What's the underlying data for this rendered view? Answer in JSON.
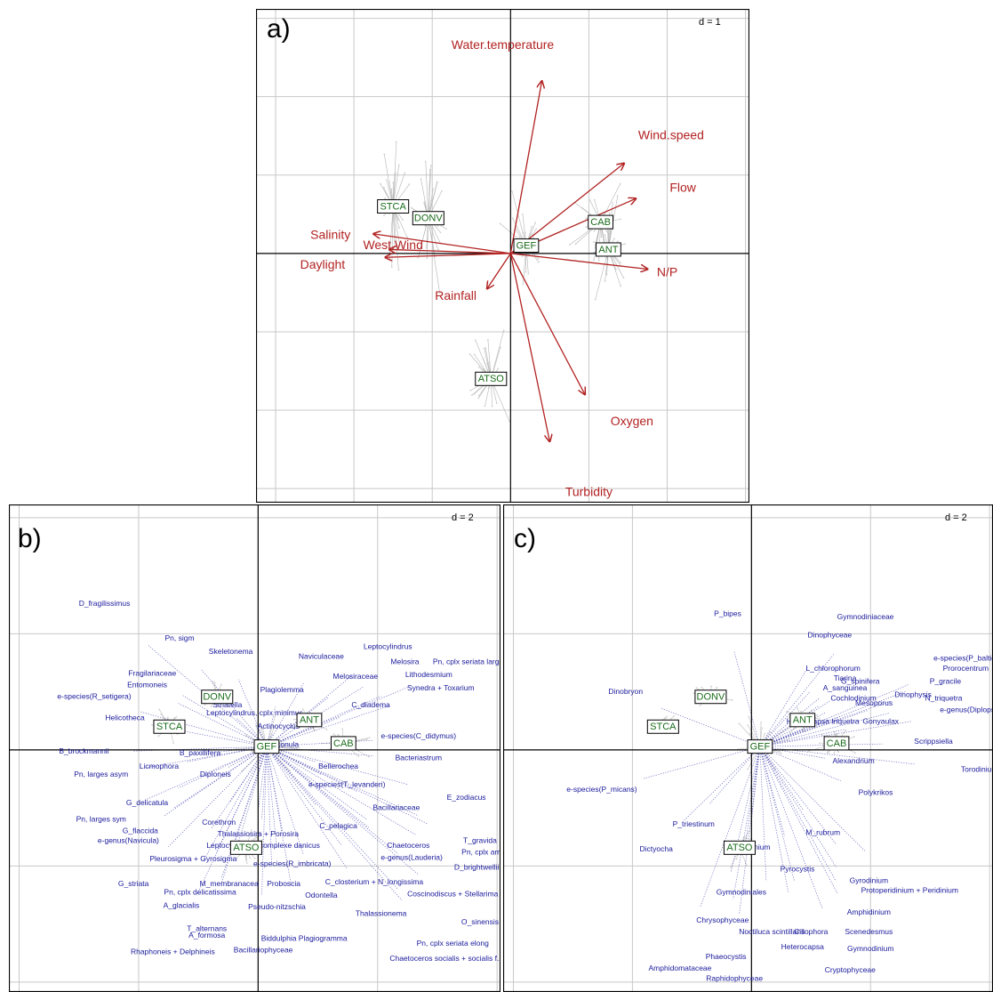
{
  "chart_data": [
    {
      "type": "scatter",
      "panel_label": "a)",
      "scale_label": "d = 1",
      "grid": true,
      "xlim": [
        -3.25,
        3.05
      ],
      "ylim": [
        -3.18,
        3.12
      ],
      "colors": {
        "variable": "#b22222",
        "group_fill": "#ffffff",
        "group_border": "#000000",
        "group_text": "#1a6b1a",
        "spider": "#b5b5b5",
        "grid": "#c8c8c8"
      },
      "groups": [
        {
          "name": "GEF",
          "x": 0.2,
          "y": 0.1
        },
        {
          "name": "STCA",
          "x": -1.5,
          "y": 0.6
        },
        {
          "name": "DONV",
          "x": -1.05,
          "y": 0.45
        },
        {
          "name": "CAB",
          "x": 1.15,
          "y": 0.4
        },
        {
          "name": "ANT",
          "x": 1.25,
          "y": 0.05
        },
        {
          "name": "ATSO",
          "x": -0.25,
          "y": -1.6
        }
      ],
      "vectors": [
        {
          "name": "Water.temperature",
          "x": 0.4,
          "y": 2.2,
          "lx": -0.1,
          "ly": 2.65
        },
        {
          "name": "Wind.speed",
          "x": 1.45,
          "y": 1.15,
          "lx": 2.05,
          "ly": 1.5
        },
        {
          "name": "Flow",
          "x": 1.6,
          "y": 0.7,
          "lx": 2.2,
          "ly": 0.83
        },
        {
          "name": "Salinity",
          "x": -1.75,
          "y": 0.25,
          "lx": -2.3,
          "ly": 0.23
        },
        {
          "name": "West.Wind",
          "x": -1.55,
          "y": 0.05,
          "lx": -1.5,
          "ly": 0.1
        },
        {
          "name": "Daylight",
          "x": -1.6,
          "y": -0.05,
          "lx": -2.4,
          "ly": -0.15
        },
        {
          "name": "N/P",
          "x": 1.75,
          "y": -0.2,
          "lx": 2.0,
          "ly": -0.25
        },
        {
          "name": "Rainfall",
          "x": -0.3,
          "y": -0.45,
          "lx": -0.7,
          "ly": -0.55
        },
        {
          "name": "Oxygen",
          "x": 0.95,
          "y": -1.8,
          "lx": 1.55,
          "ly": -2.15
        },
        {
          "name": "Turbidity",
          "x": 0.5,
          "y": -2.4,
          "lx": 1.0,
          "ly": -3.05
        }
      ]
    },
    {
      "type": "scatter",
      "panel_label": "b)",
      "scale_label": "d = 2",
      "grid": true,
      "xlim": [
        -7.3,
        7.1
      ],
      "ylim": [
        -7.3,
        7.4
      ],
      "colors": {
        "species": "#1a1a9c",
        "group_fill": "#ffffff",
        "group_border": "#000000",
        "group_text": "#1a6b1a",
        "spider": "#c0c0c0",
        "grid": "#c8c8c8"
      },
      "groups": [
        {
          "name": "GEF",
          "x": 0.25,
          "y": 0.1
        },
        {
          "name": "STCA",
          "x": -2.6,
          "y": 0.7
        },
        {
          "name": "DONV",
          "x": -1.2,
          "y": 1.6
        },
        {
          "name": "ANT",
          "x": 1.5,
          "y": 0.9
        },
        {
          "name": "CAB",
          "x": 2.5,
          "y": 0.2
        },
        {
          "name": "ATSO",
          "x": -0.35,
          "y": -2.95
        }
      ],
      "species": [
        {
          "name": "D_fragilissimus",
          "x": -4.5,
          "y": 4.4
        },
        {
          "name": "Pn, sigm",
          "x": -2.3,
          "y": 3.35
        },
        {
          "name": "Skeletonema",
          "x": -0.8,
          "y": 2.95
        },
        {
          "name": "Fragilariaceae",
          "x": -3.1,
          "y": 2.3
        },
        {
          "name": "Entomoneis",
          "x": -3.25,
          "y": 1.95
        },
        {
          "name": "e-species(R_setigera)",
          "x": -4.8,
          "y": 1.6
        },
        {
          "name": "Helicotheca",
          "x": -3.9,
          "y": 0.95
        },
        {
          "name": "B_brockmannii",
          "x": -5.1,
          "y": -0.05
        },
        {
          "name": "B_paxillifera",
          "x": -1.7,
          "y": -0.1
        },
        {
          "name": "Licmophora",
          "x": -2.9,
          "y": -0.5
        },
        {
          "name": "Pn, larges asym",
          "x": -4.6,
          "y": -0.75
        },
        {
          "name": "Diploneis",
          "x": -1.25,
          "y": -0.75
        },
        {
          "name": "G_delicatula",
          "x": -3.25,
          "y": -1.6
        },
        {
          "name": "Pn, larges sym",
          "x": -4.6,
          "y": -2.1
        },
        {
          "name": "Corethron",
          "x": -1.15,
          "y": -2.2
        },
        {
          "name": "G_flaccida",
          "x": -3.45,
          "y": -2.45
        },
        {
          "name": "e-genus(Navicula)",
          "x": -3.8,
          "y": -2.75
        },
        {
          "name": "Thalassiosira + Porosira",
          "x": 0.0,
          "y": -2.55
        },
        {
          "name": "Leptocylindrus, complexe danicus",
          "x": 0.15,
          "y": -2.9
        },
        {
          "name": "Pleurosigma + Gyrosigma",
          "x": -1.9,
          "y": -3.3
        },
        {
          "name": "e-species(R_imbricata)",
          "x": 1.0,
          "y": -3.45
        },
        {
          "name": "G_striata",
          "x": -3.65,
          "y": -4.05
        },
        {
          "name": "M_membranacea",
          "x": -0.85,
          "y": -4.05
        },
        {
          "name": "Proboscia",
          "x": 0.75,
          "y": -4.05
        },
        {
          "name": "Pn, cplx delicatissima",
          "x": -1.7,
          "y": -4.3
        },
        {
          "name": "Odontella",
          "x": 1.85,
          "y": -4.4
        },
        {
          "name": "A_glacialis",
          "x": -2.25,
          "y": -4.7
        },
        {
          "name": "Pseudo-nitzschia",
          "x": 0.55,
          "y": -4.75
        },
        {
          "name": "T_alternans",
          "x": -1.5,
          "y": -5.4
        },
        {
          "name": "A_formosa",
          "x": -1.5,
          "y": -5.6
        },
        {
          "name": "Rhaphoneis + Delphineis",
          "x": -2.5,
          "y": -6.1
        },
        {
          "name": "Biddulphia Plagiogramma",
          "x": 1.35,
          "y": -5.7
        },
        {
          "name": "Bacillariophyceae",
          "x": 0.15,
          "y": -6.05
        },
        {
          "name": "Naviculaceae",
          "x": 1.85,
          "y": 2.8
        },
        {
          "name": "Leptocylindrus",
          "x": 3.8,
          "y": 3.1
        },
        {
          "name": "Melosira",
          "x": 4.3,
          "y": 2.65
        },
        {
          "name": "Pn, cplx seriata large",
          "x": 6.15,
          "y": 2.65
        },
        {
          "name": "Melosiraceae",
          "x": 2.85,
          "y": 2.2
        },
        {
          "name": "Lithodesmium",
          "x": 5.0,
          "y": 2.25
        },
        {
          "name": "Plagiolemma",
          "x": 0.7,
          "y": 1.8
        },
        {
          "name": "Synedra + Toxarium",
          "x": 5.35,
          "y": 1.85
        },
        {
          "name": "Striatella",
          "x": -0.9,
          "y": 1.35
        },
        {
          "name": "Leptocylindrus, cplx minimus",
          "x": -0.1,
          "y": 1.1
        },
        {
          "name": "C_diadema",
          "x": 3.3,
          "y": 1.35
        },
        {
          "name": "Actinocyclus",
          "x": 0.6,
          "y": 0.7
        },
        {
          "name": "e-species(C_didymus)",
          "x": 4.7,
          "y": 0.4
        },
        {
          "name": "Detonula",
          "x": 0.75,
          "y": 0.15
        },
        {
          "name": "Bacteriastrum",
          "x": 4.7,
          "y": -0.25
        },
        {
          "name": "Bellerochea",
          "x": 2.35,
          "y": -0.5
        },
        {
          "name": "e-species(T_levanderi)",
          "x": 2.6,
          "y": -1.05
        },
        {
          "name": "E_zodiacus",
          "x": 6.1,
          "y": -1.45
        },
        {
          "name": "Bacillariaceae",
          "x": 4.05,
          "y": -1.75
        },
        {
          "name": "C_pelagica",
          "x": 2.35,
          "y": -2.3
        },
        {
          "name": "T_gravida",
          "x": 6.5,
          "y": -2.75
        },
        {
          "name": "Chaetoceros",
          "x": 4.4,
          "y": -2.9
        },
        {
          "name": "Pn, cplx americana",
          "x": 6.9,
          "y": -3.1
        },
        {
          "name": "e-genus(Lauderia)",
          "x": 4.5,
          "y": -3.25
        },
        {
          "name": "D_brightwellii",
          "x": 6.4,
          "y": -3.55
        },
        {
          "name": "C_closterium + N_longissima",
          "x": 3.4,
          "y": -4.0
        },
        {
          "name": "Coscinodiscus + Stellarima",
          "x": 5.7,
          "y": -4.35
        },
        {
          "name": "Thalassionema",
          "x": 3.6,
          "y": -4.95
        },
        {
          "name": "O_sinensis",
          "x": 6.5,
          "y": -5.2
        },
        {
          "name": "Pn, cplx seriata elong",
          "x": 5.7,
          "y": -5.85
        },
        {
          "name": "Chaetoceros socialis + socialis f. radians",
          "x": 5.85,
          "y": -6.3
        }
      ]
    },
    {
      "type": "scatter",
      "panel_label": "c)",
      "scale_label": "d = 2",
      "grid": true,
      "xlim": [
        -7.3,
        7.1
      ],
      "ylim": [
        -7.3,
        7.4
      ],
      "colors": {
        "species": "#1a1a9c",
        "group_fill": "#ffffff",
        "group_border": "#000000",
        "group_text": "#1a6b1a",
        "spider": "#c0c0c0",
        "grid": "#c8c8c8"
      },
      "groups": [
        {
          "name": "GEF",
          "x": 0.25,
          "y": 0.1
        },
        {
          "name": "STCA",
          "x": -2.6,
          "y": 0.7
        },
        {
          "name": "DONV",
          "x": -1.2,
          "y": 1.6
        },
        {
          "name": "ANT",
          "x": 1.5,
          "y": 0.9
        },
        {
          "name": "CAB",
          "x": 2.5,
          "y": 0.2
        },
        {
          "name": "ATSO",
          "x": -0.35,
          "y": -2.95
        }
      ],
      "species": [
        {
          "name": "P_bipes",
          "x": -0.7,
          "y": 4.1
        },
        {
          "name": "Gymnodiniaceae",
          "x": 3.35,
          "y": 4.0
        },
        {
          "name": "Dinophyceae",
          "x": 2.3,
          "y": 3.45
        },
        {
          "name": "Dinobryon",
          "x": -3.7,
          "y": 1.75
        },
        {
          "name": "e-species(P_balticum)",
          "x": 6.45,
          "y": 2.75
        },
        {
          "name": "Prorocentrum",
          "x": 6.3,
          "y": 2.45
        },
        {
          "name": "L_chlorophorum",
          "x": 2.4,
          "y": 2.45
        },
        {
          "name": "Tiarina",
          "x": 2.75,
          "y": 2.15
        },
        {
          "name": "G_spinifera",
          "x": 3.2,
          "y": 2.05
        },
        {
          "name": "P_gracile",
          "x": 5.7,
          "y": 2.05
        },
        {
          "name": "A_sanguinea",
          "x": 2.75,
          "y": 1.85
        },
        {
          "name": "Dinophysis",
          "x": 4.75,
          "y": 1.65
        },
        {
          "name": "N_triquetra",
          "x": 5.65,
          "y": 1.55
        },
        {
          "name": "Cochlodinium",
          "x": 3.0,
          "y": 1.55
        },
        {
          "name": "Mesoporus",
          "x": 3.6,
          "y": 1.4
        },
        {
          "name": "e-genus(Diplopsalis)",
          "x": 6.55,
          "y": 1.2
        },
        {
          "name": "Gonyaulax",
          "x": 3.8,
          "y": 0.85
        },
        {
          "name": "Heterocapsa triquetra",
          "x": 2.1,
          "y": 0.85
        },
        {
          "name": "Scrippsiella",
          "x": 5.35,
          "y": 0.25
        },
        {
          "name": "Alexandrium",
          "x": 3.0,
          "y": -0.35
        },
        {
          "name": "Torodinium",
          "x": 6.7,
          "y": -0.6
        },
        {
          "name": "Polykrikos",
          "x": 3.65,
          "y": -1.3
        },
        {
          "name": "e-species(P_micans)",
          "x": -4.4,
          "y": -1.2
        },
        {
          "name": "P_triestinum",
          "x": -1.7,
          "y": -2.25
        },
        {
          "name": "M_rubrum",
          "x": 2.1,
          "y": -2.5
        },
        {
          "name": "Dictyocha",
          "x": -2.8,
          "y": -3.0
        },
        {
          "name": "Katodinium",
          "x": 0.0,
          "y": -2.95
        },
        {
          "name": "Pyrocystis",
          "x": 1.35,
          "y": -3.6
        },
        {
          "name": "Gyrodinium",
          "x": 3.45,
          "y": -3.95
        },
        {
          "name": "Protoperidinium + Peridinium",
          "x": 4.65,
          "y": -4.25
        },
        {
          "name": "Gymnodiniales",
          "x": -0.3,
          "y": -4.3
        },
        {
          "name": "Amphidinium",
          "x": 3.45,
          "y": -4.9
        },
        {
          "name": "Chrysophyceae",
          "x": -0.85,
          "y": -5.15
        },
        {
          "name": "Noctiluca scintillans",
          "x": 0.6,
          "y": -5.5
        },
        {
          "name": "Cillophora",
          "x": 1.75,
          "y": -5.5
        },
        {
          "name": "Scenedesmus",
          "x": 3.45,
          "y": -5.5
        },
        {
          "name": "Heterocapsa",
          "x": 1.5,
          "y": -5.95
        },
        {
          "name": "Gymnodinium",
          "x": 3.5,
          "y": -6.0
        },
        {
          "name": "Phaeocystis",
          "x": -0.75,
          "y": -6.25
        },
        {
          "name": "Amphidomataceae",
          "x": -2.1,
          "y": -6.6
        },
        {
          "name": "Cryptophyceae",
          "x": 2.9,
          "y": -6.65
        },
        {
          "name": "Raphidophyceae",
          "x": -0.5,
          "y": -6.9
        }
      ]
    }
  ]
}
